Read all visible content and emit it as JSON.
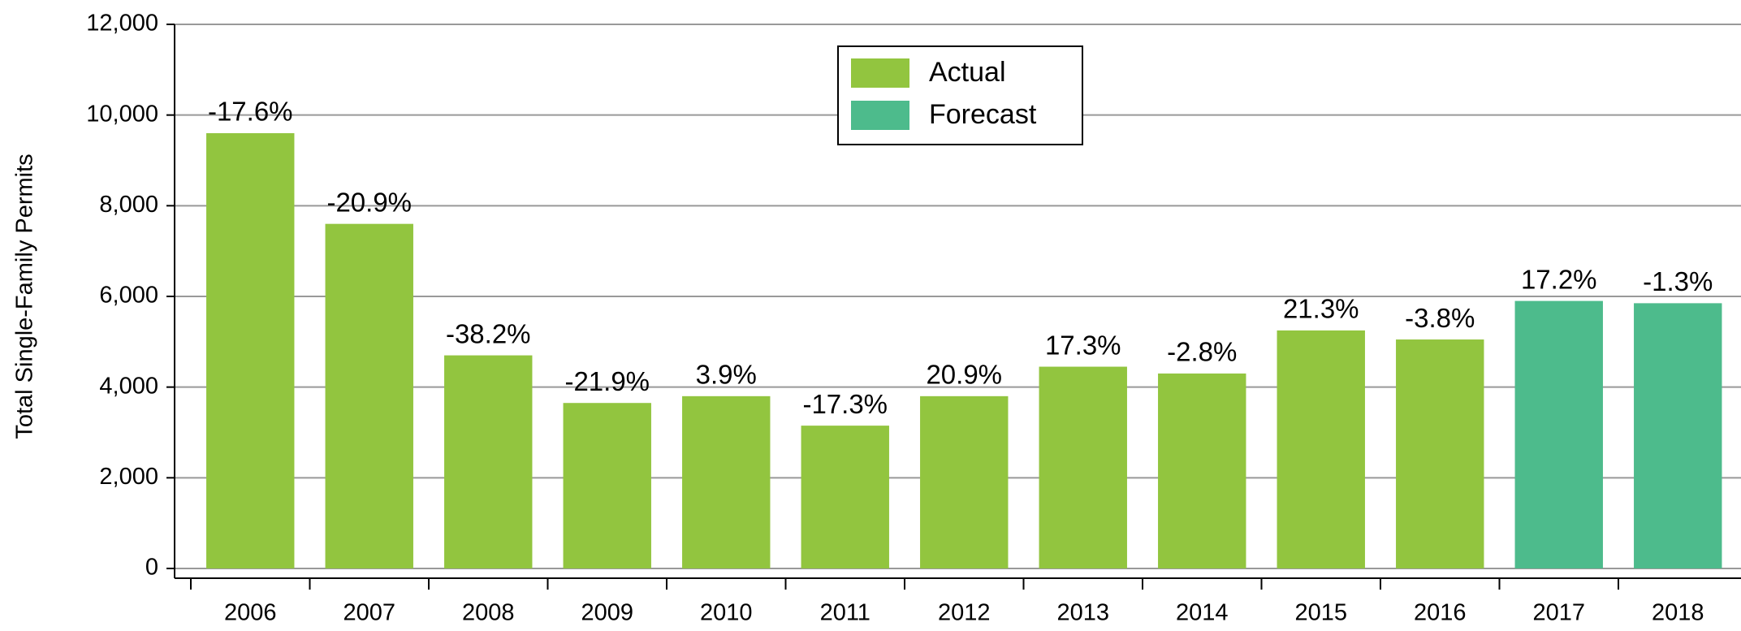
{
  "chart_data": {
    "type": "bar",
    "y_axis_label": "Total Single-Family Permits",
    "categories": [
      "2006",
      "2007",
      "2008",
      "2009",
      "2010",
      "2011",
      "2012",
      "2013",
      "2014",
      "2015",
      "2016",
      "2017",
      "2018"
    ],
    "series": [
      {
        "name": "Actual",
        "color": "#92c53f",
        "values": [
          9600,
          7600,
          4700,
          3650,
          3800,
          3150,
          3800,
          4450,
          4300,
          5250,
          5050,
          null,
          null
        ]
      },
      {
        "name": "Forecast",
        "color": "#4dbb8c",
        "values": [
          null,
          null,
          null,
          null,
          null,
          null,
          null,
          null,
          null,
          null,
          null,
          5900,
          5850
        ]
      }
    ],
    "growth_labels": [
      "-17.6%",
      "-20.9%",
      "-38.2%",
      "-21.9%",
      "3.9%",
      "-17.3%",
      "20.9%",
      "17.3%",
      "-2.8%",
      "21.3%",
      "-3.8%",
      "17.2%",
      "-1.3%"
    ],
    "ylim": [
      0,
      12000
    ],
    "yticks": [
      0,
      {
        "value": 2000,
        "label": "2,000"
      },
      {
        "value": 4000,
        "label": "4,000"
      },
      {
        "value": 6000,
        "label": "6,000"
      },
      {
        "value": 8000,
        "label": "8,000"
      },
      {
        "value": 10000,
        "label": "10,000"
      },
      {
        "value": 12000,
        "label": "12,000"
      }
    ],
    "grid": true,
    "legend": "top"
  }
}
